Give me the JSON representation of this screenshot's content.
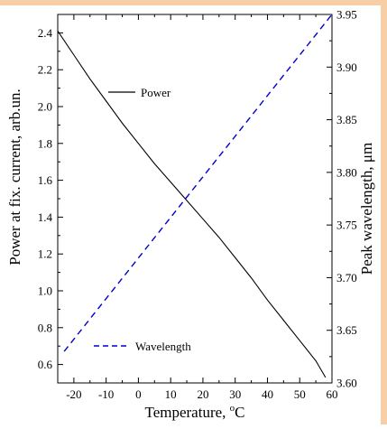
{
  "colors": {
    "frame": "#f6cfa6",
    "power": "#000000",
    "wavelength": "#0000cc"
  },
  "chart_data": {
    "type": "line",
    "xlabel": "Temperature, °C",
    "xlabel_main": "Temperature, ",
    "xlabel_sup": "o",
    "xlabel_unit": "C",
    "ylabel_left": "Power at fix. current, arb.un.",
    "ylabel_right": "Peak wavelength, μm",
    "xlim": [
      -25,
      60
    ],
    "ylim_left": [
      0.5,
      2.5
    ],
    "ylim_right": [
      3.6,
      3.95
    ],
    "x_ticks": [
      "-20",
      "-10",
      "0",
      "10",
      "20",
      "30",
      "40",
      "50",
      "60"
    ],
    "x_tick_values": [
      -20,
      -10,
      0,
      10,
      20,
      30,
      40,
      50,
      60
    ],
    "y_left_ticks": [
      "0.6",
      "0.8",
      "1.0",
      "1.2",
      "1.4",
      "1.6",
      "1.8",
      "2.0",
      "2.2",
      "2.4"
    ],
    "y_left_tick_values": [
      0.6,
      0.8,
      1.0,
      1.2,
      1.4,
      1.6,
      1.8,
      2.0,
      2.2,
      2.4
    ],
    "y_right_ticks": [
      "3.60",
      "3.65",
      "3.70",
      "3.75",
      "3.80",
      "3.85",
      "3.90",
      "3.95"
    ],
    "y_right_tick_values": [
      3.6,
      3.65,
      3.7,
      3.75,
      3.8,
      3.85,
      3.9,
      3.95
    ],
    "series": [
      {
        "name": "Power",
        "axis": "left",
        "style": "solid",
        "x": [
          -25,
          -20,
          -15,
          -10,
          -5,
          0,
          5,
          10,
          15,
          20,
          25,
          30,
          35,
          40,
          45,
          50,
          55,
          58
        ],
        "y": [
          2.41,
          2.28,
          2.15,
          2.03,
          1.91,
          1.8,
          1.69,
          1.59,
          1.49,
          1.39,
          1.29,
          1.18,
          1.07,
          0.95,
          0.84,
          0.73,
          0.62,
          0.53
        ]
      },
      {
        "name": "Wavelength",
        "axis": "right",
        "style": "dashed",
        "x": [
          -23,
          60
        ],
        "y": [
          3.63,
          3.95
        ]
      }
    ],
    "legend": [
      {
        "label": "Power",
        "style": "solid"
      },
      {
        "label": "Wavelength",
        "style": "dashed"
      }
    ]
  }
}
